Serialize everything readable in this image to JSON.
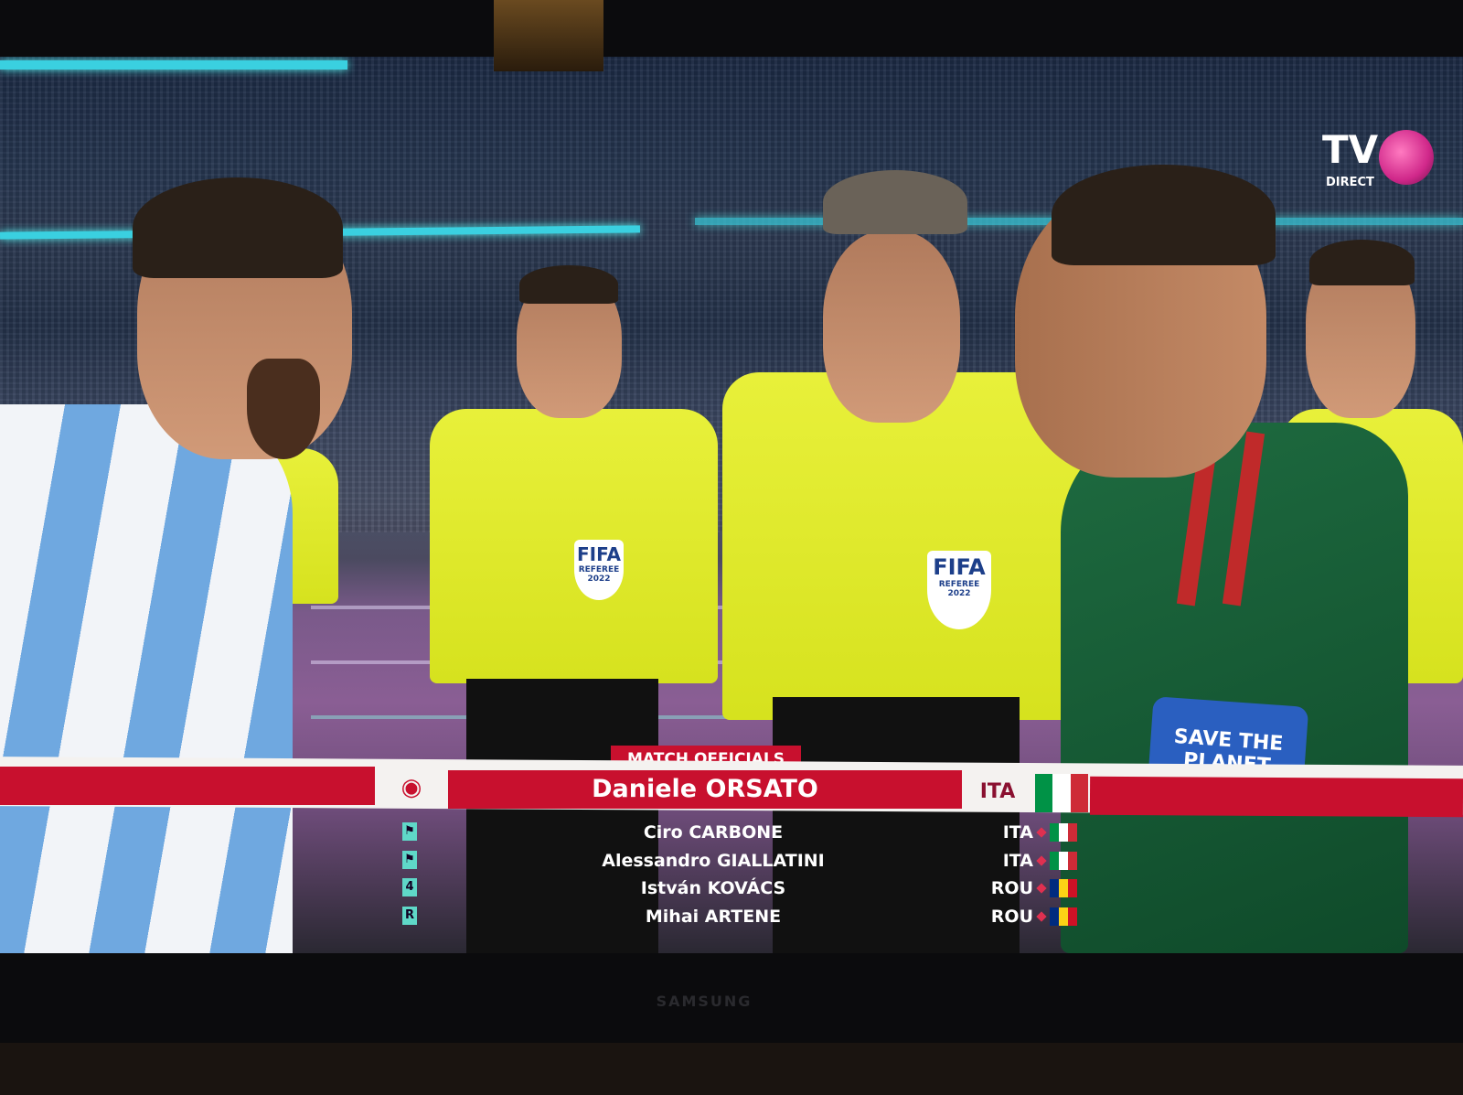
{
  "channel_logo": {
    "text": "TV",
    "subtext": "DIRECT"
  },
  "broadcast_graphic": {
    "header": "MATCH OFFICIALS",
    "referee": {
      "name": "Daniele ORSATO",
      "country": "ITA",
      "flag": [
        "#009246",
        "#ffffff",
        "#ce2b37"
      ],
      "icon": "whistle-icon"
    },
    "officials": [
      {
        "name": "Ciro CARBONE",
        "country": "ITA",
        "role_icon": "flag-icon",
        "role": "",
        "flag": [
          "#009246",
          "#ffffff",
          "#ce2b37"
        ]
      },
      {
        "name": "Alessandro GIALLATINI",
        "country": "ITA",
        "role_icon": "flag-icon",
        "role": "",
        "flag": [
          "#009246",
          "#ffffff",
          "#ce2b37"
        ]
      },
      {
        "name": "István KOVÁCS",
        "country": "ROU",
        "role_icon": "fourth-official-icon",
        "role": "4",
        "flag": [
          "#002b7f",
          "#fcd116",
          "#ce1126"
        ]
      },
      {
        "name": "Mihai ARTENE",
        "country": "ROU",
        "role_icon": "reserve-icon",
        "role": "R",
        "flag": [
          "#002b7f",
          "#fcd116",
          "#ce1126"
        ]
      }
    ],
    "accent_color": "#c8102e"
  },
  "scene": {
    "referee_badge": {
      "title": "FIFA",
      "subtitle": "REFEREE",
      "year": "2022"
    },
    "armband": "SAVE THE PLANET"
  },
  "tv_brand": "SAMSUNG"
}
